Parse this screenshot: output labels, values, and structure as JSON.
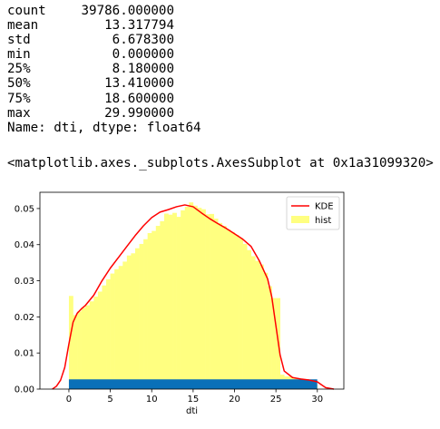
{
  "describe": {
    "rows": [
      {
        "name": "count",
        "value": "39786.000000"
      },
      {
        "name": "mean",
        "value": "13.317794"
      },
      {
        "name": "std",
        "value": "6.678300"
      },
      {
        "name": "min",
        "value": "0.000000"
      },
      {
        "name": "25%",
        "value": "8.180000"
      },
      {
        "name": "50%",
        "value": "13.410000"
      },
      {
        "name": "75%",
        "value": "18.600000"
      },
      {
        "name": "max",
        "value": "29.990000"
      }
    ],
    "footer": "Name: dti, dtype: float64"
  },
  "axes_repr": "<matplotlib.axes._subplots.AxesSubplot at 0x1a31099320>",
  "chart_data": {
    "type": "bar",
    "xlabel": "dti",
    "ylabel": "",
    "title": "",
    "xlim": [
      -3.5,
      33.2
    ],
    "ylim": [
      0,
      0.0545
    ],
    "xticks": [
      0,
      5,
      10,
      15,
      20,
      25,
      30
    ],
    "yticks": [
      0.0,
      0.01,
      0.02,
      0.03,
      0.04,
      0.05
    ],
    "ytick_labels": [
      "0.00",
      "0.01",
      "0.02",
      "0.03",
      "0.04",
      "0.05"
    ],
    "legend": {
      "position": "top-right",
      "entries": [
        "KDE",
        "hist"
      ]
    },
    "colors": {
      "kde": "#ff0000",
      "hist": "#ffff80",
      "rug": "#0a70b8"
    },
    "hist": {
      "bin_width": 0.5,
      "bin_start": 0,
      "values": [
        0.0258,
        0.0205,
        0.0215,
        0.0225,
        0.0232,
        0.0243,
        0.0256,
        0.027,
        0.0287,
        0.0304,
        0.032,
        0.0332,
        0.0341,
        0.0353,
        0.037,
        0.0376,
        0.039,
        0.0402,
        0.0415,
        0.0432,
        0.0438,
        0.0452,
        0.0465,
        0.0486,
        0.0483,
        0.0488,
        0.0477,
        0.0495,
        0.0505,
        0.0517,
        0.0508,
        0.0502,
        0.0498,
        0.0484,
        0.0485,
        0.0472,
        0.046,
        0.0452,
        0.0442,
        0.0435,
        0.0427,
        0.0418,
        0.0402,
        0.0385,
        0.0368,
        0.0355,
        0.0345,
        0.0322,
        0.0285,
        0.0252,
        0.0252,
        0.004,
        0.0035,
        0.0035,
        0.003,
        0.0028,
        0.0025,
        0.002,
        0.0016,
        0.0012
      ]
    },
    "kde": {
      "x": [
        -2,
        -1.5,
        -1,
        -0.5,
        0,
        0.5,
        1,
        1.5,
        2,
        3,
        4,
        5,
        6,
        7,
        8,
        9,
        10,
        11,
        12,
        13,
        14,
        15,
        16,
        17,
        18,
        19,
        20,
        21,
        22,
        23,
        24,
        24.5,
        25,
        25.5,
        26,
        27,
        28,
        29,
        30,
        30.5,
        31,
        32
      ],
      "y": [
        0,
        0.0008,
        0.0025,
        0.006,
        0.0125,
        0.0185,
        0.021,
        0.0222,
        0.0232,
        0.026,
        0.03,
        0.0335,
        0.0365,
        0.0395,
        0.0425,
        0.0452,
        0.0475,
        0.049,
        0.0497,
        0.0505,
        0.051,
        0.0505,
        0.0488,
        0.0472,
        0.0458,
        0.0445,
        0.043,
        0.0415,
        0.0395,
        0.0355,
        0.0305,
        0.0255,
        0.0175,
        0.0095,
        0.005,
        0.0032,
        0.0028,
        0.0025,
        0.002,
        0.0012,
        0.0004,
        0
      ]
    },
    "rug": {
      "x_min": 0,
      "x_max": 29.99
    }
  }
}
